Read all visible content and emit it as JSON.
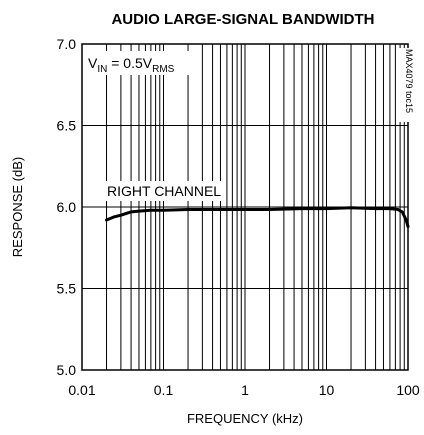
{
  "chart_data": {
    "type": "line",
    "title": "AUDIO LARGE-SIGNAL BANDWIDTH",
    "xlabel": "FREQUENCY (kHz)",
    "ylabel": "RESPONSE (dB)",
    "x_scale": "log",
    "xlim": [
      0.01,
      100
    ],
    "ylim": [
      5.0,
      7.0
    ],
    "x_ticks": [
      "0.01",
      "0.1",
      "1",
      "10",
      "100"
    ],
    "y_ticks": [
      "5.0",
      "5.5",
      "6.0",
      "6.5",
      "7.0"
    ],
    "grid": true,
    "annotations": {
      "condition_prefix": "V",
      "condition_sub1": "IN",
      "condition_mid": " = 0.5V",
      "condition_sub2": "RMS",
      "series_label": "RIGHT CHANNEL",
      "figure_id": "MAX4079 toc15"
    },
    "series": [
      {
        "name": "RIGHT CHANNEL",
        "x": [
          0.02,
          0.025,
          0.03,
          0.04,
          0.05,
          0.07,
          0.1,
          0.2,
          0.5,
          1,
          2,
          5,
          10,
          20,
          40,
          60,
          75,
          85,
          95,
          100
        ],
        "y": [
          5.92,
          5.94,
          5.95,
          5.97,
          5.975,
          5.98,
          5.98,
          5.985,
          5.985,
          5.985,
          5.985,
          5.99,
          5.99,
          5.995,
          5.99,
          5.99,
          5.985,
          5.97,
          5.92,
          5.88
        ]
      }
    ]
  }
}
